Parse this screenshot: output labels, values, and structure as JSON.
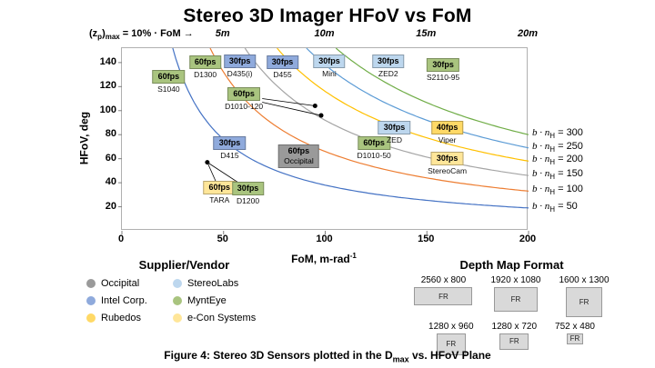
{
  "title": "Stereo 3D Imager HFoV vs FoM",
  "top_annotation": {
    "pre": "(z",
    "sub1": "p",
    "mid": ")",
    "sub2": "max",
    "post": " = 10% · FoM",
    "arrow": "→"
  },
  "chart_data": {
    "type": "scatter",
    "title": "Stereo 3D Imager HFoV vs FoM",
    "xlabel_parts": {
      "text": "FoM, m-rad",
      "sup": "-1"
    },
    "ylabel": "HFoV, deg",
    "xlim": [
      0,
      200
    ],
    "ylim": [
      0,
      152
    ],
    "xticks": [
      0,
      50,
      100,
      150,
      200
    ],
    "yticks": [
      20,
      40,
      60,
      80,
      100,
      120,
      140
    ],
    "grid": false,
    "top_axis_labels": [
      {
        "x": 50,
        "label": "5m"
      },
      {
        "x": 100,
        "label": "10m"
      },
      {
        "x": 150,
        "label": "15m"
      },
      {
        "x": 200,
        "label": "20m"
      }
    ],
    "curve_label_parts": {
      "pre": "b · n",
      "sub": "H",
      "eq": " = "
    },
    "curves": [
      {
        "value": 300,
        "y_at_xmax": 80,
        "color": "#70ad47"
      },
      {
        "value": 250,
        "y_at_xmax": 69,
        "color": "#5b9bd5"
      },
      {
        "value": 200,
        "y_at_xmax": 58,
        "color": "#ffc000"
      },
      {
        "value": 150,
        "y_at_xmax": 46,
        "color": "#a5a5a5"
      },
      {
        "value": 100,
        "y_at_xmax": 33,
        "color": "#ed7d31"
      },
      {
        "value": 50,
        "y_at_xmax": 19,
        "color": "#4472c4"
      }
    ],
    "vendors": {
      "occipital": "#9a9a9a",
      "intel": "#8faadc",
      "stereolabs": "#bdd7ee",
      "mynteye": "#a9c47f",
      "rubedos": "#ffd966",
      "econ": "#ffe699"
    },
    "points": [
      {
        "model": "S1040",
        "fps": "60fps",
        "vendor": "mynteye",
        "x": 23,
        "y": 124
      },
      {
        "model": "D1300",
        "fps": "60fps",
        "vendor": "mynteye",
        "x": 41,
        "y": 136
      },
      {
        "model": "D435(i)",
        "fps": "30fps",
        "vendor": "intel",
        "x": 58,
        "y": 137
      },
      {
        "model": "D455",
        "fps": "30fps",
        "vendor": "intel",
        "x": 79,
        "y": 136
      },
      {
        "model": "Mini",
        "fps": "30fps",
        "vendor": "stereolabs",
        "x": 102,
        "y": 137
      },
      {
        "model": "ZED2",
        "fps": "30fps",
        "vendor": "stereolabs",
        "x": 131,
        "y": 137
      },
      {
        "model": "S2110-95",
        "fps": "30fps",
        "vendor": "mynteye",
        "x": 158,
        "y": 134
      },
      {
        "model": "D1010-120",
        "fps": "60fps",
        "vendor": "mynteye",
        "x": 60,
        "y": 110
      },
      {
        "model": "D415",
        "fps": "30fps",
        "vendor": "intel",
        "x": 53,
        "y": 69
      },
      {
        "model": "Occipital",
        "fps": "60fps",
        "vendor": "occipital",
        "x": 87,
        "y": 62,
        "label_inside": true
      },
      {
        "model": "D1010-50",
        "fps": "60fps",
        "vendor": "mynteye",
        "x": 124,
        "y": 69
      },
      {
        "model": "ZED",
        "fps": "30fps",
        "vendor": "stereolabs",
        "x": 134,
        "y": 82
      },
      {
        "model": "Viper",
        "fps": "40fps",
        "vendor": "rubedos",
        "x": 160,
        "y": 82
      },
      {
        "model": "StereoCam",
        "fps": "30fps",
        "vendor": "econ",
        "x": 160,
        "y": 56
      },
      {
        "model": "TARA",
        "fps": "60fps",
        "vendor": "econ",
        "x": 48,
        "y": 32
      },
      {
        "model": "D1200",
        "fps": "30fps",
        "vendor": "mynteye",
        "x": 62,
        "y": 31
      }
    ],
    "callouts": [
      {
        "dot": [
          42,
          57
        ],
        "targets": [
          [
            47,
            38
          ],
          [
            61,
            36
          ]
        ]
      },
      {
        "dot": [
          95,
          104
        ],
        "targets": [
          [
            69,
            110
          ]
        ]
      },
      {
        "dot": [
          98,
          96
        ],
        "targets": [
          [
            69,
            107
          ]
        ]
      }
    ]
  },
  "legend": {
    "title": "Supplier/Vendor",
    "items": [
      {
        "label": "Occipital",
        "color": "#9a9a9a"
      },
      {
        "label": "StereoLabs",
        "color": "#bdd7ee"
      },
      {
        "label": "Intel Corp.",
        "color": "#8faadc"
      },
      {
        "label": "MyntEye",
        "color": "#a9c47f"
      },
      {
        "label": "Rubedos",
        "color": "#ffd966"
      },
      {
        "label": "e-Con Systems",
        "color": "#ffe699"
      }
    ]
  },
  "depth_formats": {
    "title": "Depth Map Format",
    "items": [
      {
        "label": "2560 x 800",
        "tag": "FR"
      },
      {
        "label": "1920 x 1080",
        "tag": "FR"
      },
      {
        "label": "1600 x 1300",
        "tag": "FR"
      },
      {
        "label": "1280 x 960",
        "tag": "FR"
      },
      {
        "label": "1280 x 720",
        "tag": "FR"
      },
      {
        "label": "752 x 480",
        "tag": "FR"
      }
    ]
  },
  "caption": {
    "pre": "Figure 4: Stereo 3D Sensors plotted in the D",
    "sub": "max",
    "post": " vs. HFoV Plane"
  }
}
